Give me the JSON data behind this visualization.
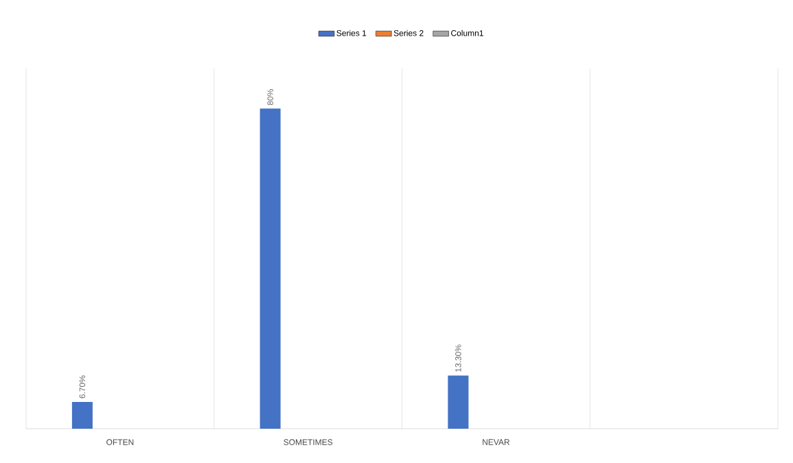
{
  "chart_data": {
    "type": "bar",
    "categories": [
      "OFTEN",
      "SOMETIMES",
      "NEVAR",
      null
    ],
    "series": [
      {
        "name": "Series 1",
        "color": "#4472c4",
        "values": [
          6.7,
          80,
          13.3,
          null
        ],
        "value_labels": [
          "6.70%",
          "80%",
          "13.30%",
          null
        ]
      },
      {
        "name": "Series 2",
        "color": "#ed7d31",
        "values": [
          null,
          null,
          null,
          null
        ]
      },
      {
        "name": "Column1",
        "color": "#a5a5a5",
        "values": [
          null,
          null,
          null,
          null
        ]
      }
    ],
    "ylim": [
      0,
      90
    ],
    "grid": "x",
    "legend": "top"
  }
}
